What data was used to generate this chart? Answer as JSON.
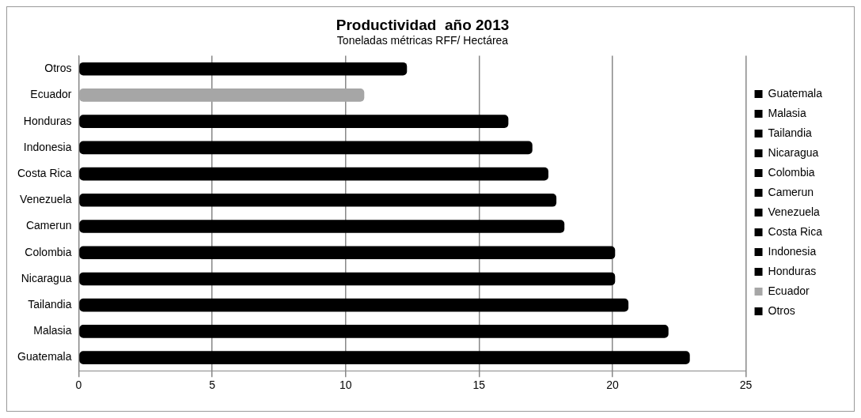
{
  "chart_data": {
    "type": "bar",
    "orientation": "horizontal",
    "title": "Productividad  año 2013",
    "subtitle": "Toneladas métricas RFF/ Hectárea",
    "categories": [
      "Otros",
      "Ecuador",
      "Honduras",
      "Indonesia",
      "Costa Rica",
      "Venezuela",
      "Camerun",
      "Colombia",
      "Nicaragua",
      "Tailandia",
      "Malasia",
      "Guatemala"
    ],
    "series": [
      {
        "name": "Guatemala",
        "color": "#000000",
        "values": [
          null,
          null,
          null,
          null,
          null,
          null,
          null,
          null,
          null,
          null,
          null,
          22.9
        ]
      },
      {
        "name": "Malasia",
        "color": "#000000",
        "values": [
          null,
          null,
          null,
          null,
          null,
          null,
          null,
          null,
          null,
          null,
          22.1,
          null
        ]
      },
      {
        "name": "Tailandia",
        "color": "#000000",
        "values": [
          null,
          null,
          null,
          null,
          null,
          null,
          null,
          null,
          null,
          20.6,
          null,
          null
        ]
      },
      {
        "name": "Nicaragua",
        "color": "#000000",
        "values": [
          null,
          null,
          null,
          null,
          null,
          null,
          null,
          null,
          20.1,
          null,
          null,
          null
        ]
      },
      {
        "name": "Colombia",
        "color": "#000000",
        "values": [
          null,
          null,
          null,
          null,
          null,
          null,
          null,
          20.1,
          null,
          null,
          null,
          null
        ]
      },
      {
        "name": "Camerun",
        "color": "#000000",
        "values": [
          null,
          null,
          null,
          null,
          null,
          null,
          18.2,
          null,
          null,
          null,
          null,
          null
        ]
      },
      {
        "name": "Venezuela",
        "color": "#000000",
        "values": [
          null,
          null,
          null,
          null,
          null,
          17.9,
          null,
          null,
          null,
          null,
          null,
          null
        ]
      },
      {
        "name": "Costa Rica",
        "color": "#000000",
        "values": [
          null,
          null,
          null,
          null,
          17.6,
          null,
          null,
          null,
          null,
          null,
          null,
          null
        ]
      },
      {
        "name": "Indonesia",
        "color": "#000000",
        "values": [
          null,
          null,
          null,
          17.0,
          null,
          null,
          null,
          null,
          null,
          null,
          null,
          null
        ]
      },
      {
        "name": "Honduras",
        "color": "#000000",
        "values": [
          null,
          null,
          16.1,
          null,
          null,
          null,
          null,
          null,
          null,
          null,
          null,
          null
        ]
      },
      {
        "name": "Ecuador",
        "color": "#a6a6a6",
        "values": [
          null,
          10.7,
          null,
          null,
          null,
          null,
          null,
          null,
          null,
          null,
          null,
          null
        ]
      },
      {
        "name": "Otros",
        "color": "#000000",
        "values": [
          12.3,
          null,
          null,
          null,
          null,
          null,
          null,
          null,
          null,
          null,
          null,
          null
        ]
      }
    ],
    "xlim": [
      0,
      25
    ],
    "xticks": [
      0,
      5,
      10,
      15,
      20,
      25
    ],
    "grid": "x",
    "legend": "right"
  }
}
